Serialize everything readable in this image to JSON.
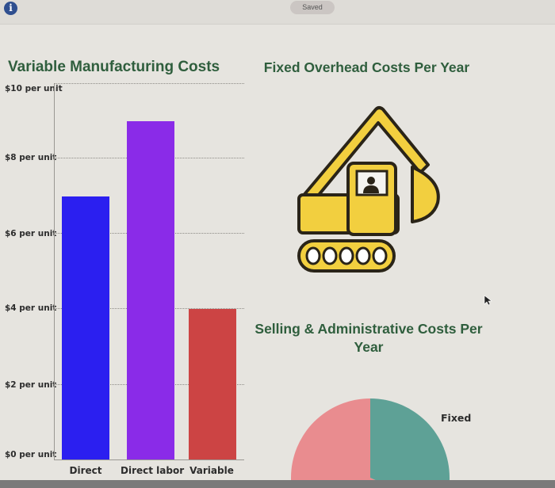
{
  "topbar": {
    "info_icon": "info-icon",
    "info_glyph": "i",
    "status": "Saved"
  },
  "bar_chart": {
    "title": "Variable Manufacturing Costs",
    "y_ticks": [
      "$10 per unit",
      "$8 per unit",
      "$6 per unit",
      "$4 per unit",
      "$2 per unit",
      "$0 per unit"
    ],
    "categories": [
      "Direct",
      "Direct labor",
      "Variable"
    ],
    "colors": [
      "#2b1ff0",
      "#8a2be8",
      "#cc4444"
    ]
  },
  "fixed_overhead": {
    "title": "Fixed Overhead Costs Per Year",
    "icon": "excavator-icon",
    "colors": {
      "body": "#f2cf3f",
      "outline": "#2a2418"
    }
  },
  "selling_admin": {
    "title": "Selling & Administrative Costs Per Year",
    "slice_label": "Fixed",
    "colors": {
      "fixed": "#5ea196",
      "variable": "#e98c8f"
    }
  },
  "chart_data": [
    {
      "type": "bar",
      "title": "Variable Manufacturing Costs",
      "categories": [
        "Direct",
        "Direct labor",
        "Variable"
      ],
      "values": [
        7,
        9,
        4
      ],
      "xlabel": "",
      "ylabel": "",
      "y_tick_labels": [
        "$0 per unit",
        "$2 per unit",
        "$4 per unit",
        "$6 per unit",
        "$8 per unit",
        "$10 per unit"
      ],
      "ylim": [
        0,
        10
      ],
      "grid": true
    },
    {
      "type": "pie",
      "title": "Selling & Administrative Costs Per Year",
      "labels": [
        "Fixed",
        ""
      ],
      "colors": [
        "#5ea196",
        "#e98c8f"
      ],
      "note": "Pie partially cropped at bottom; only the top half is visible with the 'Fixed' slice label"
    }
  ]
}
